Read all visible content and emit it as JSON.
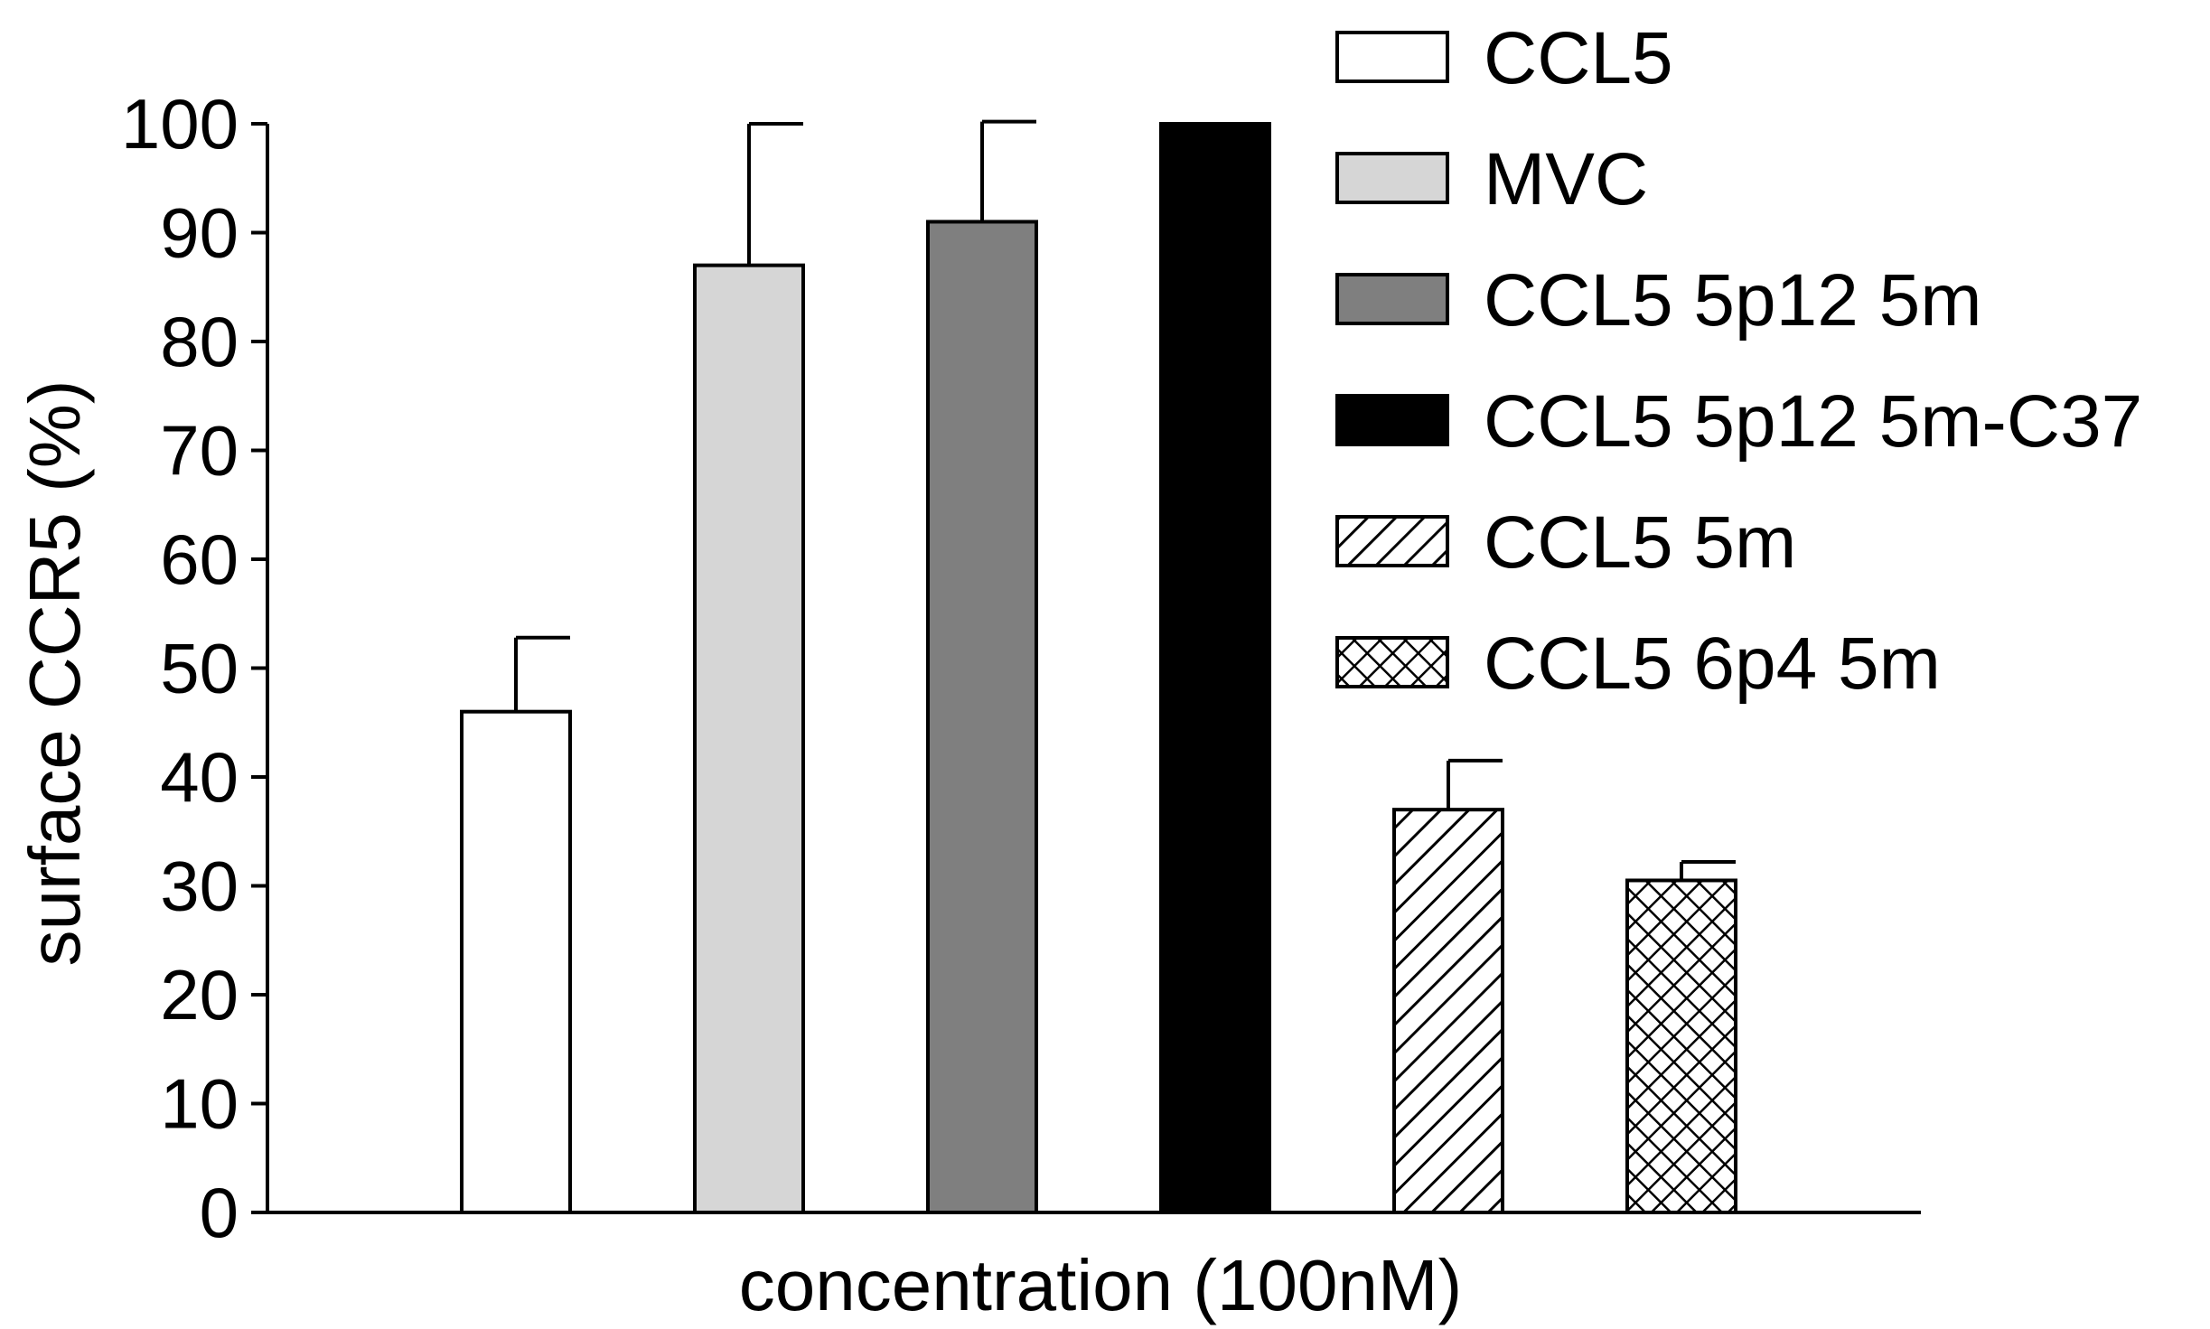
{
  "chart_data": {
    "type": "bar",
    "title": "",
    "xlabel": "concentration (100nM)",
    "ylabel": "surface CCR5 (%)",
    "ylim": [
      0,
      100
    ],
    "yticks": [
      0,
      10,
      20,
      30,
      40,
      50,
      60,
      70,
      80,
      90,
      100
    ],
    "legend_position": "top-right",
    "categories": [
      "CCL5",
      "MVC",
      "CCL5 5p12 5m",
      "CCL5 5p12 5m-C37",
      "CCL5 5m",
      "CCL5 6p4 5m"
    ],
    "values": [
      46,
      87,
      91,
      100,
      37,
      30.5
    ],
    "errors": [
      6.8,
      13,
      9.2,
      0,
      4.5,
      1.7
    ],
    "fills": [
      {
        "color": "#ffffff",
        "pattern": "none"
      },
      {
        "color": "#d6d6d6",
        "pattern": "none"
      },
      {
        "color": "#7f7f7f",
        "pattern": "none"
      },
      {
        "color": "#000000",
        "pattern": "none"
      },
      {
        "color": "#ffffff",
        "pattern": "diagonal"
      },
      {
        "color": "#ffffff",
        "pattern": "crosshatch"
      }
    ]
  }
}
